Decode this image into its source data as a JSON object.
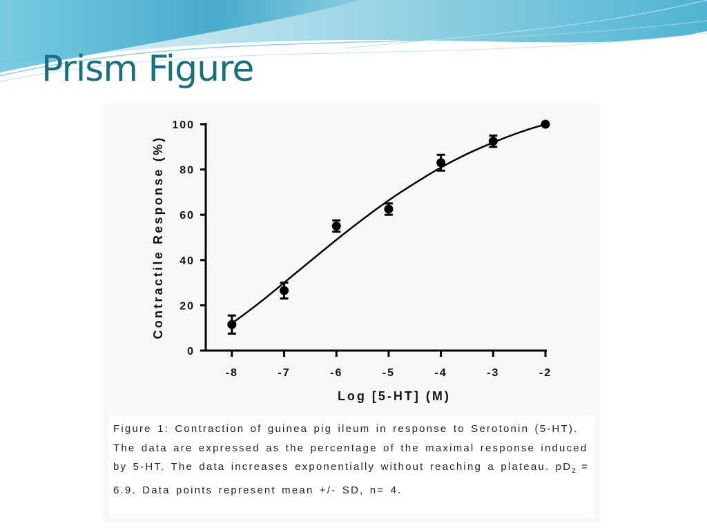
{
  "slide": {
    "title": "Prism Figure"
  },
  "caption": {
    "part1": "Figure 1: Contraction of guinea pig ileum in response to Serotonin (5-HT). The data are expressed as the percentage of the maximal response induced by 5-HT. The data increases exponentially without reaching a plateau. pD",
    "sub": "2",
    "part2": " = 6.9. Data points represent mean +/- SD, n= 4."
  },
  "colors": {
    "title": "#1a6e7e",
    "banner_light": "#d8f0f6",
    "banner_mid": "#8fd0e4",
    "banner_dark": "#3aa7c8",
    "ink": "#000000"
  },
  "chart_data": {
    "type": "scatter",
    "title": "",
    "xlabel": "Log [5-HT] (M)",
    "ylabel": "Contractile Response (%)",
    "xlim": [
      -8.5,
      -2
    ],
    "ylim": [
      0,
      100
    ],
    "x_ticks": [
      -8,
      -7,
      -6,
      -5,
      -4,
      -3,
      -2
    ],
    "x_tick_labels": [
      "-8",
      "-7",
      "-6",
      "-5",
      "-4",
      "-3",
      "-2"
    ],
    "y_ticks": [
      0,
      20,
      40,
      60,
      80,
      100
    ],
    "y_tick_labels": [
      "0",
      "20",
      "40",
      "60",
      "80",
      "100"
    ],
    "grid": false,
    "legend": "none",
    "series": [
      {
        "x": [
          -8,
          -7,
          -6,
          -5,
          -4,
          -3,
          -2
        ],
        "y": [
          11.5,
          26.5,
          55,
          62.5,
          83,
          92.5,
          100
        ],
        "sd": [
          4,
          3.5,
          2.5,
          2.5,
          3.5,
          2.5,
          0
        ]
      }
    ],
    "fit_curve": {
      "x": [
        -8,
        -7.5,
        -7,
        -6.5,
        -6,
        -5.5,
        -5,
        -4.5,
        -4,
        -3.5,
        -3,
        -2.5,
        -2
      ],
      "y": [
        12,
        20.5,
        30,
        39.5,
        49,
        58,
        66.5,
        74,
        81,
        87,
        92,
        96.5,
        100
      ]
    }
  }
}
